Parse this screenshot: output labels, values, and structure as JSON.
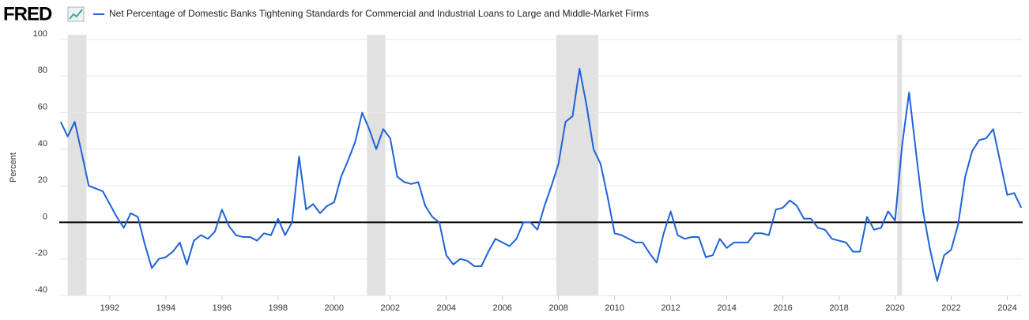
{
  "chart_data": {
    "type": "line",
    "logo": "FRED",
    "ylabel": "Percent",
    "x": [
      1990.25,
      1990.5,
      1990.75,
      1991,
      1991.25,
      1991.5,
      1991.75,
      1992,
      1992.25,
      1992.5,
      1992.75,
      1993,
      1993.25,
      1993.5,
      1993.75,
      1994,
      1994.25,
      1994.5,
      1994.75,
      1995,
      1995.25,
      1995.5,
      1995.75,
      1996,
      1996.25,
      1996.5,
      1996.75,
      1997,
      1997.25,
      1997.5,
      1997.75,
      1998,
      1998.25,
      1998.5,
      1998.75,
      1999,
      1999.25,
      1999.5,
      1999.75,
      2000,
      2000.25,
      2000.5,
      2000.75,
      2001,
      2001.25,
      2001.5,
      2001.75,
      2002,
      2002.25,
      2002.5,
      2002.75,
      2003,
      2003.25,
      2003.5,
      2003.75,
      2004,
      2004.25,
      2004.5,
      2004.75,
      2005,
      2005.25,
      2005.5,
      2005.75,
      2006,
      2006.25,
      2006.5,
      2006.75,
      2007,
      2007.25,
      2007.5,
      2007.75,
      2008,
      2008.25,
      2008.5,
      2008.75,
      2009,
      2009.25,
      2009.5,
      2009.75,
      2010,
      2010.25,
      2010.5,
      2010.75,
      2011,
      2011.25,
      2011.5,
      2011.75,
      2012,
      2012.25,
      2012.5,
      2012.75,
      2013,
      2013.25,
      2013.5,
      2013.75,
      2014,
      2014.25,
      2014.5,
      2014.75,
      2015,
      2015.25,
      2015.5,
      2015.75,
      2016,
      2016.25,
      2016.5,
      2016.75,
      2017,
      2017.25,
      2017.5,
      2017.75,
      2018,
      2018.25,
      2018.5,
      2018.75,
      2019,
      2019.25,
      2019.5,
      2019.75,
      2020,
      2020.25,
      2020.5,
      2020.75,
      2021,
      2021.25,
      2021.5,
      2021.75,
      2022,
      2022.25,
      2022.5,
      2022.75,
      2023,
      2023.25,
      2023.5,
      2023.75,
      2024,
      2024.25,
      2024.5
    ],
    "series": [
      {
        "name": "Net Percentage of Domestic Banks Tightening Standards for Commercial and Industrial Loans to Large and Middle-Market Firms",
        "color": "#1e63d6",
        "values": [
          55,
          47,
          55,
          38,
          20,
          18.5,
          17,
          10,
          3,
          -3,
          5,
          3,
          -12,
          -25,
          -20,
          -19,
          -16,
          -11,
          -23,
          -10,
          -7,
          -9,
          -5,
          7,
          -2,
          -7,
          -8,
          -8,
          -10,
          -6,
          -7,
          2,
          -7,
          0,
          36,
          7,
          10,
          5,
          9,
          11,
          25,
          34,
          44,
          60,
          51,
          40,
          51,
          46,
          25,
          22,
          21,
          22,
          9,
          3,
          0,
          -18,
          -23,
          -20,
          -21,
          -24,
          -24,
          -16,
          -9,
          -11,
          -13,
          -9,
          0,
          0,
          -4,
          9,
          20,
          32,
          55,
          58,
          84,
          64,
          40,
          32,
          14,
          -6,
          -7,
          -9,
          -11,
          -11,
          -17,
          -22,
          -6,
          6,
          -7,
          -9,
          -8,
          -8,
          -19,
          -18,
          -9,
          -14,
          -11,
          -11,
          -11,
          -6,
          -6,
          -7,
          7,
          8,
          12,
          9,
          2,
          2,
          -3,
          -4,
          -9,
          -10,
          -11,
          -16,
          -16,
          3,
          -4,
          -3,
          6,
          1,
          42,
          71,
          38,
          6,
          -15,
          -32,
          -18,
          -15,
          -1,
          25,
          39,
          45,
          46,
          51,
          33,
          15,
          16,
          8
        ]
      }
    ],
    "xlim": [
      1990.2,
      2024.55
    ],
    "xticks": [
      1992,
      1994,
      1996,
      1998,
      2000,
      2002,
      2004,
      2006,
      2008,
      2010,
      2012,
      2014,
      2016,
      2018,
      2020,
      2022,
      2024
    ],
    "ylim": [
      -40,
      100
    ],
    "yticks": [
      -40,
      -20,
      0,
      20,
      40,
      60,
      80,
      100
    ],
    "grid": true,
    "zero_line": true,
    "recessions": [
      [
        1990.5,
        1991.17
      ],
      [
        2001.17,
        2001.83
      ],
      [
        2007.92,
        2009.42
      ],
      [
        2020.08,
        2020.25
      ]
    ]
  }
}
